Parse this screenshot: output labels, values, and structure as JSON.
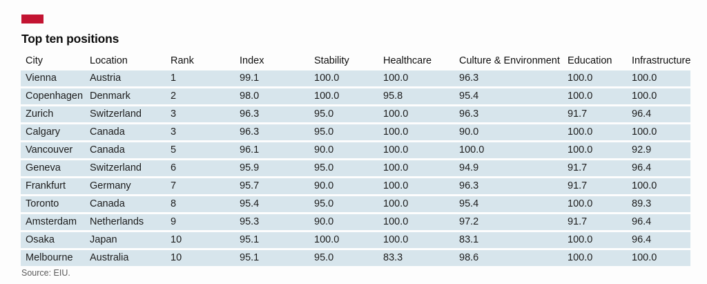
{
  "brand": {
    "accent_color": "#c31432"
  },
  "title": "Top ten positions",
  "source": "Source: EIU.",
  "chart_data": {
    "type": "table",
    "title": "Top ten positions",
    "row_bg_color": "#d7e5ec",
    "columns": [
      "City",
      "Location",
      "Rank",
      "Index",
      "Stability",
      "Healthcare",
      "Culture & Environment",
      "Education",
      "Infrastructure"
    ],
    "rows": [
      [
        "Vienna",
        "Austria",
        "1",
        "99.1",
        "100.0",
        "100.0",
        "96.3",
        "100.0",
        "100.0"
      ],
      [
        "Copenhagen",
        "Denmark",
        "2",
        "98.0",
        "100.0",
        "95.8",
        "95.4",
        "100.0",
        "100.0"
      ],
      [
        "Zurich",
        "Switzerland",
        "3",
        "96.3",
        "95.0",
        "100.0",
        "96.3",
        "91.7",
        "96.4"
      ],
      [
        "Calgary",
        "Canada",
        "3",
        "96.3",
        "95.0",
        "100.0",
        "90.0",
        "100.0",
        "100.0"
      ],
      [
        "Vancouver",
        "Canada",
        "5",
        "96.1",
        "90.0",
        "100.0",
        "100.0",
        "100.0",
        "92.9"
      ],
      [
        "Geneva",
        "Switzerland",
        "6",
        "95.9",
        "95.0",
        "100.0",
        "94.9",
        "91.7",
        "96.4"
      ],
      [
        "Frankfurt",
        "Germany",
        "7",
        "95.7",
        "90.0",
        "100.0",
        "96.3",
        "91.7",
        "100.0"
      ],
      [
        "Toronto",
        "Canada",
        "8",
        "95.4",
        "95.0",
        "100.0",
        "95.4",
        "100.0",
        "89.3"
      ],
      [
        "Amsterdam",
        "Netherlands",
        "9",
        "95.3",
        "90.0",
        "100.0",
        "97.2",
        "91.7",
        "96.4"
      ],
      [
        "Osaka",
        "Japan",
        "10",
        "95.1",
        "100.0",
        "100.0",
        "83.1",
        "100.0",
        "96.4"
      ],
      [
        "Melbourne",
        "Australia",
        "10",
        "95.1",
        "95.0",
        "83.3",
        "98.6",
        "100.0",
        "100.0"
      ]
    ]
  }
}
